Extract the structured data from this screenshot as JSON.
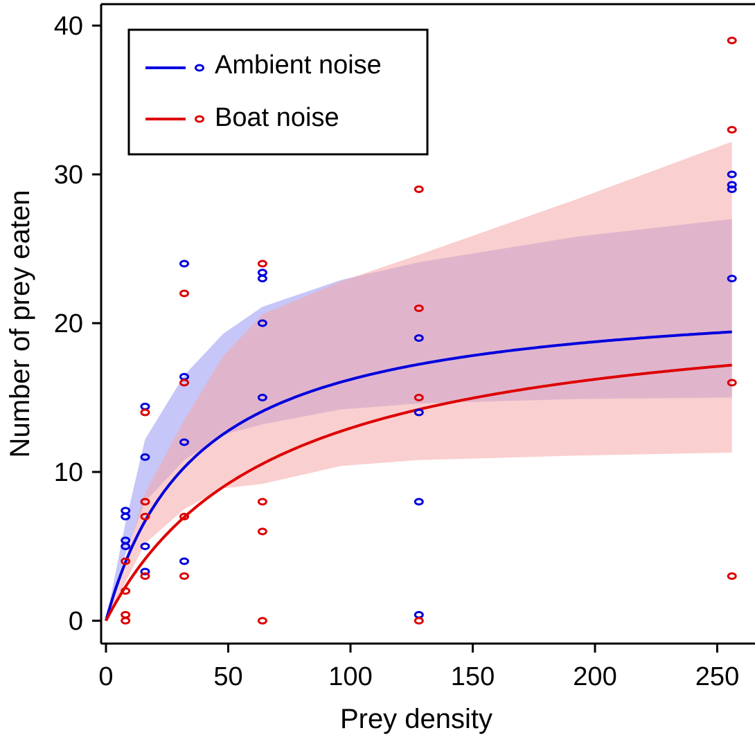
{
  "chart_data": {
    "type": "scatter",
    "title": "",
    "xlabel": "Prey density",
    "ylabel": "Number of prey eaten",
    "xlim": [
      0,
      256
    ],
    "ylim": [
      0,
      40
    ],
    "xticks": [
      0,
      50,
      100,
      150,
      200,
      250
    ],
    "yticks": [
      0,
      10,
      20,
      30,
      40
    ],
    "grid": false,
    "legend_position": "top-left",
    "series": [
      {
        "name": "Ambient noise",
        "color": "#0000dd",
        "band_color": "#a7a7f5",
        "fit": {
          "model": "type II functional response",
          "a": 0.6,
          "h": 0.045
        },
        "band_lower": [
          [
            0,
            0
          ],
          [
            8,
            4.5
          ],
          [
            16,
            8
          ],
          [
            32,
            10.8
          ],
          [
            48,
            12.5
          ],
          [
            64,
            13.2
          ],
          [
            96,
            14.2
          ],
          [
            128,
            14.6
          ],
          [
            192,
            14.9
          ],
          [
            256,
            15.0
          ]
        ],
        "band_upper": [
          [
            0,
            0
          ],
          [
            8,
            6.6
          ],
          [
            16,
            12.2
          ],
          [
            32,
            16.5
          ],
          [
            48,
            19.3
          ],
          [
            64,
            21.1
          ],
          [
            96,
            22.9
          ],
          [
            128,
            24.1
          ],
          [
            192,
            25.8
          ],
          [
            256,
            27.0
          ]
        ],
        "points": [
          [
            8,
            7.4
          ],
          [
            8,
            7
          ],
          [
            8,
            5.4
          ],
          [
            8,
            5
          ],
          [
            16,
            14.4
          ],
          [
            16,
            11
          ],
          [
            16,
            5
          ],
          [
            16,
            3.3
          ],
          [
            32,
            24
          ],
          [
            32,
            16.4
          ],
          [
            32,
            12
          ],
          [
            32,
            4
          ],
          [
            64,
            23.4
          ],
          [
            64,
            23
          ],
          [
            64,
            20
          ],
          [
            64,
            15
          ],
          [
            128,
            19
          ],
          [
            128,
            14
          ],
          [
            128,
            8
          ],
          [
            128,
            0.4
          ],
          [
            256,
            30
          ],
          [
            256,
            29.3
          ],
          [
            256,
            29
          ],
          [
            256,
            23
          ]
        ]
      },
      {
        "name": "Boat noise",
        "color": "#dd0000",
        "band_color": "#f5a7a7",
        "fit": {
          "model": "type II functional response",
          "a": 0.32,
          "h": 0.046
        },
        "band_lower": [
          [
            0,
            0
          ],
          [
            8,
            2.6
          ],
          [
            16,
            5.2
          ],
          [
            32,
            7.5
          ],
          [
            48,
            8.9
          ],
          [
            64,
            9.2
          ],
          [
            96,
            10.4
          ],
          [
            128,
            10.8
          ],
          [
            192,
            11.1
          ],
          [
            256,
            11.3
          ]
        ],
        "band_upper": [
          [
            0,
            0
          ],
          [
            8,
            4.2
          ],
          [
            16,
            8.6
          ],
          [
            32,
            13.5
          ],
          [
            48,
            17.8
          ],
          [
            64,
            20.6
          ],
          [
            96,
            22.8
          ],
          [
            128,
            24.6
          ],
          [
            192,
            28.3
          ],
          [
            256,
            32.2
          ]
        ],
        "points": [
          [
            8,
            4
          ],
          [
            8,
            2
          ],
          [
            8,
            0.4
          ],
          [
            8,
            0
          ],
          [
            16,
            14
          ],
          [
            16,
            8
          ],
          [
            16,
            7
          ],
          [
            16,
            3
          ],
          [
            32,
            22
          ],
          [
            32,
            16
          ],
          [
            32,
            7
          ],
          [
            32,
            3
          ],
          [
            64,
            24
          ],
          [
            64,
            8
          ],
          [
            64,
            6
          ],
          [
            64,
            0
          ],
          [
            128,
            29
          ],
          [
            128,
            21
          ],
          [
            128,
            15
          ],
          [
            128,
            0
          ],
          [
            256,
            39
          ],
          [
            256,
            33
          ],
          [
            256,
            16
          ],
          [
            256,
            3
          ]
        ]
      }
    ]
  }
}
